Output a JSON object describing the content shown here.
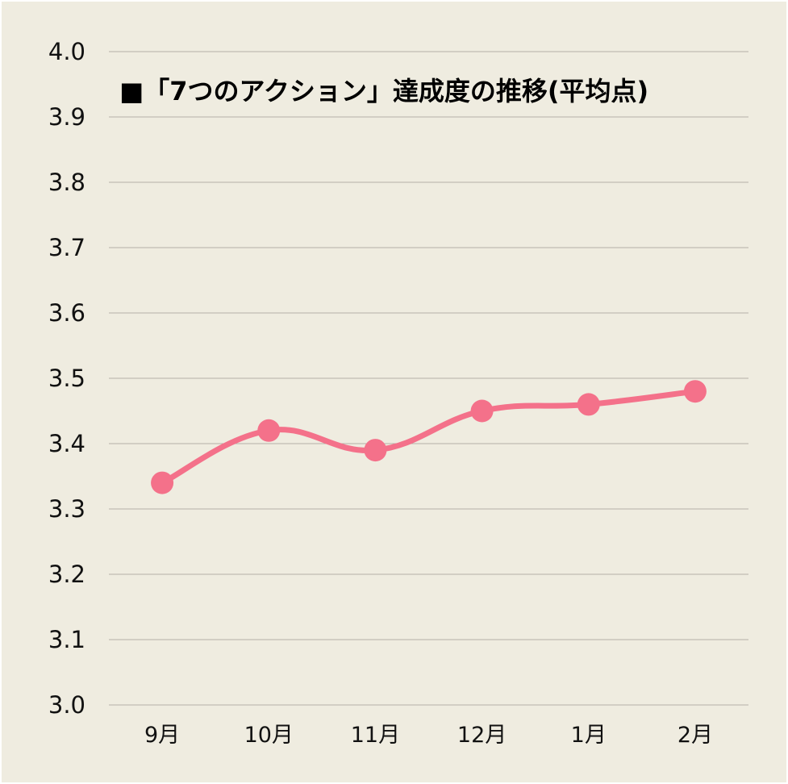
{
  "chart_data": {
    "type": "line",
    "title": "■「7つのアクション」達成度の推移(平均点)",
    "xlabel": "",
    "ylabel": "",
    "categories": [
      "9月",
      "10月",
      "11月",
      "12月",
      "1月",
      "2月"
    ],
    "series": [
      {
        "values": [
          3.34,
          3.42,
          3.39,
          3.45,
          3.46,
          3.48
        ]
      }
    ],
    "ylim": [
      3.0,
      4.0
    ],
    "yticks": [
      "3.0",
      "3.1",
      "3.2",
      "3.3",
      "3.4",
      "3.5",
      "3.6",
      "3.7",
      "3.8",
      "3.9",
      "4.0"
    ],
    "grid": true,
    "legend": "none",
    "colors": {
      "background": "#efece0",
      "line": "#f4718a",
      "grid": "#b4b1a7"
    }
  }
}
